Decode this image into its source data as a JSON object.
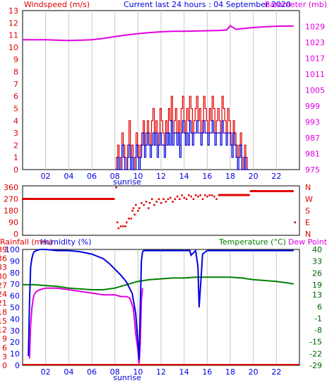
{
  "colors": {
    "red": "#e00000",
    "blue": "#0000e0",
    "magenta": "#e000e0",
    "green": "#008000",
    "darkgreen": "#006400",
    "grid": "#c8c8c8",
    "axis": "#000000"
  },
  "header": {
    "windspeed_label": "Windspeed (m/s)",
    "title": "Current last 24 hours : 04 September 2020",
    "barometer_label": "Barometer (mb)"
  },
  "panel3_header": {
    "rainfall_label": "Rainfall (mm)",
    "humidity_label": "Humidity (%)",
    "temperature_label": "Temperature (°C)",
    "dewpoint_label": "Dew Point"
  },
  "sunrise_label": "sunrise",
  "chart_data": [
    {
      "type": "line",
      "title": "Current last 24 hours : 04 September 2020",
      "x_ticks": [
        "02",
        "04",
        "06",
        "08",
        "10",
        "12",
        "14",
        "16",
        "18",
        "20",
        "22"
      ],
      "x_range_hours": [
        0,
        24
      ],
      "y_left": {
        "label": "Windspeed (m/s)",
        "range": [
          0,
          13
        ],
        "ticks": [
          0,
          1,
          2,
          3,
          4,
          5,
          6,
          7,
          8,
          9,
          10,
          11,
          12,
          13
        ]
      },
      "y_right": {
        "label": "Barometer (mb)",
        "range": [
          975,
          1035
        ],
        "ticks": [
          975,
          981,
          987,
          993,
          999,
          1005,
          1011,
          1017,
          1023,
          1029
        ]
      },
      "series": [
        {
          "name": "Barometer (mb)",
          "axis": "right",
          "color": "#e000e0",
          "x": [
            0,
            2,
            4,
            6,
            7,
            8,
            9,
            10,
            11,
            12,
            13,
            14,
            15,
            16,
            17,
            17.7,
            18,
            18.5,
            19,
            20,
            21,
            22,
            23.5
          ],
          "y": [
            1024,
            1024,
            1023.7,
            1024,
            1024.5,
            1025.2,
            1025.8,
            1026.3,
            1026.7,
            1027,
            1027.2,
            1027.2,
            1027.3,
            1027.4,
            1027.5,
            1027.7,
            1029.3,
            1027.9,
            1028.2,
            1028.6,
            1028.9,
            1029.1,
            1029.2
          ]
        },
        {
          "name": "Windspeed gust",
          "axis": "left",
          "color": "#e00000",
          "x_start": 8.0,
          "x_end": 19.6,
          "y": [
            0,
            1,
            2,
            0,
            1,
            3,
            2,
            1,
            0,
            2,
            4,
            1,
            2,
            0,
            1,
            3,
            2,
            1,
            2,
            3,
            4,
            2,
            3,
            4,
            3,
            2,
            4,
            5,
            3,
            4,
            2,
            3,
            5,
            4,
            3,
            2,
            4,
            3,
            5,
            4,
            6,
            3,
            4,
            5,
            3,
            4,
            2,
            5,
            6,
            4,
            3,
            5,
            4,
            6,
            5,
            3,
            4,
            5,
            6,
            4,
            5,
            3,
            4,
            6,
            5,
            4,
            3,
            5,
            4,
            6,
            5,
            3,
            4,
            5,
            4,
            3,
            6,
            5,
            4,
            3,
            5,
            4,
            3,
            2,
            4,
            3,
            2,
            1,
            2,
            3,
            1,
            0,
            2,
            1,
            0
          ]
        },
        {
          "name": "Windspeed average",
          "axis": "left",
          "color": "#0000e0",
          "x_start": 8.0,
          "x_end": 19.6,
          "y": [
            0,
            0,
            1,
            0,
            0,
            2,
            1,
            0,
            0,
            1,
            2,
            0,
            1,
            0,
            0,
            2,
            1,
            0,
            1,
            2,
            3,
            1,
            2,
            3,
            2,
            1,
            2,
            3,
            2,
            3,
            1,
            2,
            3,
            2,
            2,
            1,
            3,
            2,
            3,
            2,
            4,
            2,
            3,
            3,
            2,
            3,
            1,
            3,
            4,
            3,
            2,
            3,
            2,
            4,
            3,
            2,
            3,
            3,
            4,
            3,
            3,
            2,
            3,
            4,
            3,
            3,
            2,
            3,
            3,
            4,
            3,
            2,
            3,
            3,
            3,
            2,
            4,
            3,
            3,
            2,
            3,
            3,
            2,
            1,
            3,
            2,
            1,
            0,
            1,
            2,
            0,
            0,
            1,
            0,
            0
          ]
        }
      ]
    },
    {
      "type": "scatter",
      "title": "",
      "x_range_hours": [
        0,
        24
      ],
      "y_left": {
        "label": "",
        "range": [
          0,
          360
        ],
        "ticks": [
          0,
          90,
          180,
          270,
          360
        ]
      },
      "y_right": {
        "label": "",
        "ticks": [
          "N",
          "W",
          "S",
          "E",
          "N"
        ]
      },
      "series": [
        {
          "name": "Wind direction",
          "color": "#e00000",
          "points": [
            [
              0,
              270
            ],
            [
              1,
              270
            ],
            [
              2,
              270
            ],
            [
              3,
              270
            ],
            [
              4,
              270
            ],
            [
              5,
              270
            ],
            [
              6,
              270
            ],
            [
              7,
              270
            ],
            [
              7.9,
              270
            ],
            [
              8.1,
              360
            ],
            [
              8.2,
              90
            ],
            [
              8.3,
              45
            ],
            [
              8.5,
              60
            ],
            [
              8.7,
              60
            ],
            [
              8.9,
              60
            ],
            [
              9.0,
              90
            ],
            [
              9.2,
              120
            ],
            [
              9.4,
              120
            ],
            [
              9.5,
              180
            ],
            [
              9.6,
              200
            ],
            [
              9.7,
              150
            ],
            [
              9.8,
              225
            ],
            [
              10.0,
              180
            ],
            [
              10.1,
              200
            ],
            [
              10.3,
              240
            ],
            [
              10.5,
              225
            ],
            [
              10.7,
              250
            ],
            [
              10.9,
              200
            ],
            [
              11.0,
              240
            ],
            [
              11.2,
              270
            ],
            [
              11.4,
              225
            ],
            [
              11.6,
              250
            ],
            [
              11.8,
              270
            ],
            [
              12.0,
              240
            ],
            [
              12.2,
              270
            ],
            [
              12.4,
              250
            ],
            [
              12.6,
              270
            ],
            [
              12.8,
              280
            ],
            [
              13.0,
              250
            ],
            [
              13.2,
              270
            ],
            [
              13.4,
              290
            ],
            [
              13.6,
              270
            ],
            [
              13.8,
              300
            ],
            [
              14.0,
              280
            ],
            [
              14.2,
              270
            ],
            [
              14.4,
              300
            ],
            [
              14.6,
              290
            ],
            [
              14.8,
              270
            ],
            [
              15.0,
              300
            ],
            [
              15.2,
              290
            ],
            [
              15.4,
              300
            ],
            [
              15.6,
              270
            ],
            [
              15.8,
              300
            ],
            [
              16.0,
              290
            ],
            [
              16.2,
              300
            ],
            [
              16.4,
              300
            ],
            [
              16.6,
              290
            ],
            [
              16.8,
              270
            ],
            [
              17.0,
              300
            ],
            [
              17.3,
              300
            ],
            [
              17.6,
              300
            ],
            [
              18.0,
              300
            ],
            [
              18.5,
              300
            ],
            [
              19.0,
              300
            ],
            [
              19.5,
              300
            ],
            [
              20.0,
              330
            ],
            [
              20.5,
              330
            ],
            [
              21.0,
              330
            ],
            [
              21.5,
              330
            ],
            [
              22.0,
              330
            ],
            [
              22.5,
              330
            ],
            [
              23.0,
              330
            ],
            [
              23.6,
              90
            ]
          ]
        }
      ]
    },
    {
      "type": "line",
      "title": "",
      "x_ticks": [
        "02",
        "04",
        "06",
        "08",
        "10",
        "12",
        "14",
        "16",
        "18",
        "20",
        "22"
      ],
      "x_range_hours": [
        0,
        24
      ],
      "y_left_rain": {
        "label": "Rainfall (mm)",
        "ticks": [
          0,
          3,
          6,
          9,
          12,
          15,
          18,
          21,
          24,
          27,
          30,
          33,
          36,
          39
        ],
        "note": "printed labels are 0 3 6 9 12 15 18 21 24 27 30 33 36 39"
      },
      "y_left_humidity": {
        "label": "Humidity (%)",
        "range": [
          0,
          100
        ],
        "ticks": [
          0,
          10,
          20,
          30,
          40,
          50,
          60,
          70,
          80,
          90,
          100
        ]
      },
      "y_right": {
        "label": "Temperature (°C)",
        "range": [
          -29,
          40
        ],
        "ticks": [
          -29,
          -22,
          -15,
          -8,
          -1,
          6,
          13,
          19,
          26,
          33,
          40
        ]
      },
      "series": [
        {
          "name": "Humidity (%)",
          "axis": "humidity",
          "color": "#0000e0",
          "x": [
            0.5,
            0.6,
            0.7,
            0.8,
            0.9,
            1.0,
            1.2,
            1.5,
            2,
            3,
            4,
            5,
            6,
            7,
            7.5,
            8,
            8.5,
            9,
            9.5,
            9.8,
            10.0,
            10.1,
            10.2,
            10.3,
            10.4,
            10.5,
            10.6,
            11,
            12,
            13,
            14,
            14.5,
            14.6,
            15,
            15.2,
            15.3,
            15.5,
            15.6,
            16,
            16.5,
            17,
            17.5,
            18,
            18.5,
            19,
            20,
            21,
            22,
            23.5
          ],
          "y": [
            8,
            55,
            85,
            92,
            96,
            98,
            99,
            100,
            100,
            99,
            99,
            98,
            96,
            92,
            88,
            83,
            78,
            72,
            62,
            45,
            20,
            5,
            50,
            90,
            98,
            99,
            99,
            99,
            99,
            99,
            99,
            99,
            95,
            99,
            85,
            50,
            80,
            96,
            99,
            99,
            99,
            99,
            99,
            99,
            99,
            99,
            99,
            99,
            99
          ]
        },
        {
          "name": "Dew Point",
          "axis": "right",
          "color": "#e000e0",
          "x": [
            0.6,
            0.7,
            0.8,
            0.9,
            1.0,
            1.2,
            1.5,
            2,
            3,
            4,
            5,
            6,
            7,
            7.5,
            8,
            8.5,
            9,
            9.3,
            9.6,
            9.8,
            10.0,
            10.1,
            10.2,
            10.3,
            10.4
          ],
          "y": [
            -25,
            -5,
            5,
            10,
            13,
            15,
            16,
            17,
            17,
            16,
            15,
            14,
            13,
            13,
            13,
            12,
            12,
            11,
            5,
            -10,
            -20,
            -28,
            -15,
            10,
            17
          ]
        },
        {
          "name": "Temperature (°C)",
          "axis": "right",
          "color": "#008000",
          "x": [
            0,
            1,
            2,
            3,
            4,
            5,
            6,
            7,
            8,
            9,
            10,
            11,
            12,
            13,
            14,
            15,
            16,
            17,
            18,
            19,
            20,
            21,
            22,
            23,
            23.5
          ],
          "y": [
            19,
            19,
            18.5,
            18,
            17,
            16.5,
            16,
            16,
            17,
            19,
            21,
            22,
            22.5,
            23,
            23,
            23.5,
            23.5,
            23.5,
            23.5,
            23,
            22,
            21.5,
            21,
            20,
            19.5
          ]
        },
        {
          "name": "Rainfall (mm)",
          "axis": "rain",
          "color": "#e00000",
          "x": [
            0,
            24
          ],
          "y": [
            0,
            0
          ]
        }
      ]
    }
  ]
}
